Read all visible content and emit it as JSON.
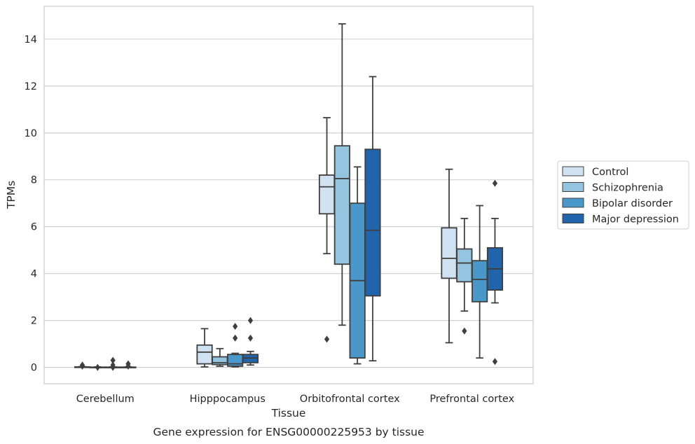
{
  "chart_data": {
    "type": "box",
    "caption": "Gene expression for ENSG00000225953 by tissue",
    "xlabel": "Tissue",
    "ylabel": "TPMs",
    "ylim": [
      -0.7,
      15.4
    ],
    "yticks": [
      0,
      2,
      4,
      6,
      8,
      10,
      12,
      14
    ],
    "grid": "horizontal",
    "legend_position": "right",
    "categories": [
      "Cerebellum",
      "Hipppocampus",
      "Orbitofrontal cortex",
      "Prefrontal cortex"
    ],
    "series": [
      {
        "name": "Control",
        "color": "#d0e1f2",
        "boxes": [
          {
            "whislo": 0,
            "q1": 0,
            "med": 0,
            "q3": 0.02,
            "whishi": 0.03,
            "fliers": [
              0.05,
              0.1
            ]
          },
          {
            "whislo": 0.02,
            "q1": 0.15,
            "med": 0.65,
            "q3": 0.95,
            "whishi": 1.65,
            "fliers": []
          },
          {
            "whislo": 4.85,
            "q1": 6.55,
            "med": 7.7,
            "q3": 8.2,
            "whishi": 10.65,
            "fliers": [
              1.2
            ]
          },
          {
            "whislo": 1.05,
            "q1": 3.8,
            "med": 4.65,
            "q3": 5.95,
            "whishi": 8.45,
            "fliers": []
          }
        ]
      },
      {
        "name": "Schizophrenia",
        "color": "#94c4df",
        "boxes": [
          {
            "whislo": 0,
            "q1": 0,
            "med": 0,
            "q3": 0.01,
            "whishi": 0.02,
            "fliers": [
              0.0
            ]
          },
          {
            "whislo": 0.05,
            "q1": 0.12,
            "med": 0.2,
            "q3": 0.45,
            "whishi": 0.8,
            "fliers": []
          },
          {
            "whislo": 1.8,
            "q1": 4.4,
            "med": 8.05,
            "q3": 9.45,
            "whishi": 14.65,
            "fliers": []
          },
          {
            "whislo": 2.4,
            "q1": 3.65,
            "med": 4.45,
            "q3": 5.05,
            "whishi": 6.35,
            "fliers": [
              1.55
            ]
          }
        ]
      },
      {
        "name": "Bipolar disorder",
        "color": "#4a98c9",
        "boxes": [
          {
            "whislo": 0,
            "q1": 0,
            "med": 0,
            "q3": 0.01,
            "whishi": 0.02,
            "fliers": [
              0.0,
              0.1,
              0.3
            ]
          },
          {
            "whislo": 0.02,
            "q1": 0.05,
            "med": 0.15,
            "q3": 0.55,
            "whishi": 0.6,
            "fliers": [
              1.25,
              1.75
            ]
          },
          {
            "whislo": 0.15,
            "q1": 0.4,
            "med": 3.7,
            "q3": 7.0,
            "whishi": 8.55,
            "fliers": []
          },
          {
            "whislo": 0.4,
            "q1": 2.8,
            "med": 3.75,
            "q3": 4.55,
            "whishi": 6.9,
            "fliers": []
          }
        ]
      },
      {
        "name": "Major depression",
        "color": "#2164ab",
        "boxes": [
          {
            "whislo": 0,
            "q1": 0,
            "med": 0,
            "q3": 0.01,
            "whishi": 0.02,
            "fliers": [
              0.05,
              0.15
            ]
          },
          {
            "whislo": 0.1,
            "q1": 0.2,
            "med": 0.4,
            "q3": 0.55,
            "whishi": 0.68,
            "fliers": [
              1.25,
              2.0
            ]
          },
          {
            "whislo": 0.28,
            "q1": 3.05,
            "med": 5.85,
            "q3": 9.3,
            "whishi": 12.4,
            "fliers": []
          },
          {
            "whislo": 2.75,
            "q1": 3.3,
            "med": 4.2,
            "q3": 5.1,
            "whishi": 6.35,
            "fliers": [
              0.25,
              7.85
            ]
          }
        ]
      }
    ]
  }
}
